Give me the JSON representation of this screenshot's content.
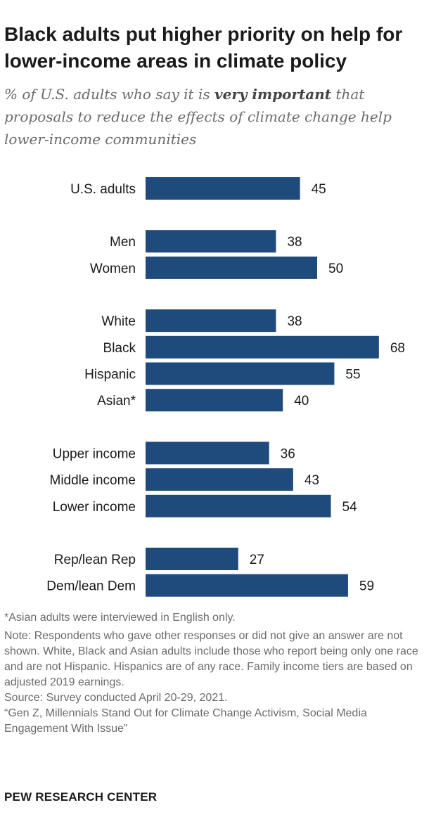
{
  "header": {
    "title": "Black adults put higher priority on help for lower-income areas in climate policy",
    "subtitle_pre": "% of U.S. adults who say it is ",
    "subtitle_emph": "very important",
    "subtitle_post": " that proposals to reduce the effects of climate change help lower-income communities"
  },
  "chart_data": {
    "type": "bar",
    "orientation": "horizontal",
    "title": "Black adults put higher priority on help for lower-income areas in climate policy",
    "subtitle": "% of U.S. adults who say it is very important that proposals to reduce the effects of climate change help lower-income communities",
    "categories": [
      "U.S. adults",
      "Men",
      "Women",
      "White",
      "Black",
      "Hispanic",
      "Asian*",
      "Upper income",
      "Middle income",
      "Lower income",
      "Rep/lean Rep",
      "Dem/lean Dem"
    ],
    "values": [
      45,
      38,
      50,
      38,
      68,
      55,
      40,
      36,
      43,
      54,
      27,
      59
    ],
    "groups": [
      [
        "U.S. adults"
      ],
      [
        "Men",
        "Women"
      ],
      [
        "White",
        "Black",
        "Hispanic",
        "Asian*"
      ],
      [
        "Upper income",
        "Middle income",
        "Lower income"
      ],
      [
        "Rep/lean Rep",
        "Dem/lean Dem"
      ]
    ],
    "xlabel": "",
    "ylabel": "",
    "xlim": [
      0,
      100
    ],
    "grid": false,
    "bar_color": "#1f4a7c"
  },
  "footer": {
    "asian_note": "*Asian adults were interviewed in English only.",
    "note": "Note: Respondents who gave other responses or did not give an answer are not shown. White, Black and Asian adults include those who report being only one race and are not Hispanic. Hispanics are of any race. Family income tiers are based on adjusted 2019 earnings.",
    "source": "Source: Survey conducted April 20-29, 2021.",
    "report": "“Gen Z, Millennials Stand Out for Climate Change Activism, Social Media Engagement With Issue”",
    "brand": "PEW RESEARCH CENTER"
  }
}
